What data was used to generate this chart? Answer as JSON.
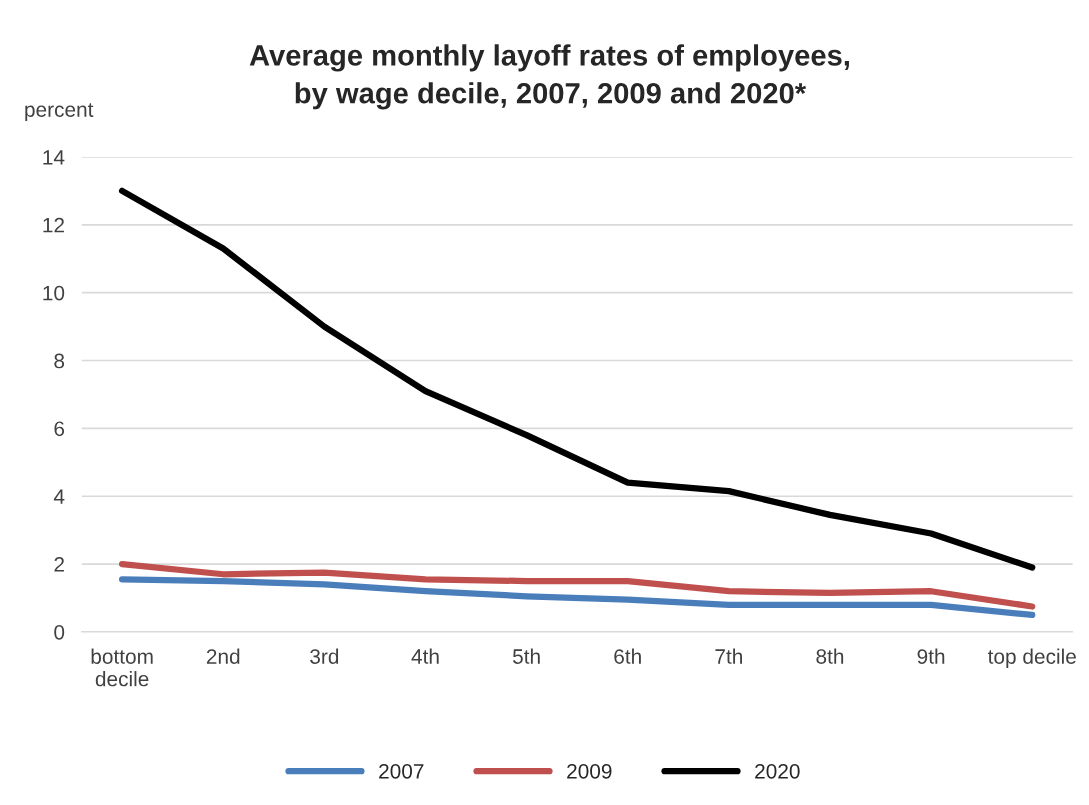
{
  "chart_data": {
    "type": "line",
    "title": "Average monthly layoff rates of employees,\nby wage decile, 2007, 2009 and 2020*",
    "ylabel": "percent",
    "categories": [
      "bottom\ndecile",
      "2nd",
      "3rd",
      "4th",
      "5th",
      "6th",
      "7th",
      "8th",
      "9th",
      "top decile"
    ],
    "series": [
      {
        "name": "2007",
        "color": "#4a7ebb",
        "values": [
          1.55,
          1.5,
          1.4,
          1.2,
          1.05,
          0.95,
          0.8,
          0.8,
          0.8,
          0.5
        ]
      },
      {
        "name": "2009",
        "color": "#c0504d",
        "values": [
          2.0,
          1.7,
          1.75,
          1.55,
          1.5,
          1.5,
          1.2,
          1.15,
          1.2,
          0.75
        ]
      },
      {
        "name": "2020",
        "color": "#000000",
        "values": [
          13.0,
          11.3,
          9.0,
          7.1,
          5.8,
          4.4,
          4.15,
          3.45,
          2.9,
          1.9
        ]
      }
    ],
    "ylim": [
      0,
      14
    ],
    "yticks": [
      0,
      2,
      4,
      6,
      8,
      10,
      12,
      14
    ],
    "grid": "y",
    "legend": "bottom",
    "marker": "none",
    "line_style": "solid"
  }
}
